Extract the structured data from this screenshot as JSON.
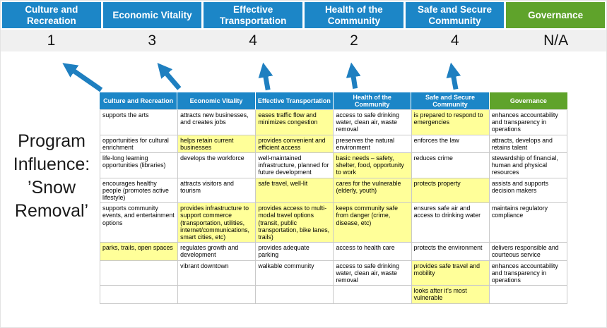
{
  "colors": {
    "blue": "#1C86C7",
    "green": "#5FA32B",
    "yellow": "#FFFF99",
    "score_band": "#F0F0F0",
    "arrow": "#1E7FC0"
  },
  "program_label": "Program Influence: ’Snow Removal’",
  "score_header": {
    "columns": [
      {
        "label": "Culture and Recreation",
        "score": "1"
      },
      {
        "label": "Economic Vitality",
        "score": "3"
      },
      {
        "label": "Effective Transportation",
        "score": "4"
      },
      {
        "label": "Health of the Community",
        "score": "2"
      },
      {
        "label": "Safe and Secure Community",
        "score": "4"
      },
      {
        "label": "Governance",
        "score": "N/A"
      }
    ]
  },
  "matrix": {
    "headers": [
      "Culture and Recreation",
      "Economic Vitality",
      "Effective Transportation",
      "Health of the Community",
      "Safe and Secure Community",
      "Governance"
    ],
    "rows": [
      [
        {
          "text": "supports the arts",
          "highlight": false
        },
        {
          "text": "attracts new businesses, and creates jobs",
          "highlight": false
        },
        {
          "text": "eases traffic flow and minimizes congestion",
          "highlight": true
        },
        {
          "text": "access to safe drinking water, clean air, waste removal",
          "highlight": false
        },
        {
          "text": "is prepared to respond to emergencies",
          "highlight": true
        },
        {
          "text": "enhances accountability and transparency in operations",
          "highlight": false
        }
      ],
      [
        {
          "text": "opportunities for cultural enrichment",
          "highlight": false
        },
        {
          "text": "helps retain current businesses",
          "highlight": true
        },
        {
          "text": "provides convenient and efficient access",
          "highlight": true
        },
        {
          "text": "preserves the natural environment",
          "highlight": false
        },
        {
          "text": "enforces the law",
          "highlight": false
        },
        {
          "text": "attracts, develops and retains talent",
          "highlight": false
        }
      ],
      [
        {
          "text": "life-long learning opportunities (libraries)",
          "highlight": false
        },
        {
          "text": "develops the workforce",
          "highlight": false
        },
        {
          "text": "well-maintained infrastructure, planned for future development",
          "highlight": false
        },
        {
          "text": "basic needs – safety, shelter, food, opportunity to work",
          "highlight": true
        },
        {
          "text": "reduces crime",
          "highlight": false
        },
        {
          "text": "stewardship of financial, human and physical resources",
          "highlight": false
        }
      ],
      [
        {
          "text": "encourages healthy people (promotes active lifestyle)",
          "highlight": false
        },
        {
          "text": "attracts visitors and tourism",
          "highlight": false
        },
        {
          "text": "safe travel, well-lit",
          "highlight": true
        },
        {
          "text": "cares for the vulnerable (elderly, youth)",
          "highlight": true
        },
        {
          "text": "protects property",
          "highlight": true
        },
        {
          "text": "assists and supports decision makers",
          "highlight": false
        }
      ],
      [
        {
          "text": "supports community events, and entertainment options",
          "highlight": false
        },
        {
          "text": "provides infrastructure to support commerce (transportation, utilities, internet/communications, smart cities, etc)",
          "highlight": true
        },
        {
          "text": "provides access to multi-modal travel options (transit, public transportation, bike lanes, trails)",
          "highlight": true
        },
        {
          "text": "keeps community safe from danger (crime, disease, etc)",
          "highlight": true
        },
        {
          "text": "ensures safe air and access to drinking water",
          "highlight": false
        },
        {
          "text": "maintains regulatory compliance",
          "highlight": false
        }
      ],
      [
        {
          "text": "parks, trails, open spaces",
          "highlight": true
        },
        {
          "text": "regulates growth and development",
          "highlight": false
        },
        {
          "text": "provides adequate parking",
          "highlight": false
        },
        {
          "text": "access to health care",
          "highlight": false
        },
        {
          "text": "protects the environment",
          "highlight": false
        },
        {
          "text": "delivers responsible and courteous service",
          "highlight": false
        }
      ],
      [
        {
          "text": "",
          "highlight": false
        },
        {
          "text": "vibrant downtown",
          "highlight": false
        },
        {
          "text": "walkable community",
          "highlight": false
        },
        {
          "text": "access to safe drinking water, clean air, waste removal",
          "highlight": false
        },
        {
          "text": "provides safe travel and mobility",
          "highlight": true
        },
        {
          "text": "enhances accountability and transparency in operations",
          "highlight": false
        }
      ],
      [
        {
          "text": "",
          "highlight": false
        },
        {
          "text": "",
          "highlight": false
        },
        {
          "text": "",
          "highlight": false
        },
        {
          "text": "",
          "highlight": false
        },
        {
          "text": "looks after it's most vulnerable",
          "highlight": true
        },
        {
          "text": "",
          "highlight": false
        }
      ]
    ]
  }
}
